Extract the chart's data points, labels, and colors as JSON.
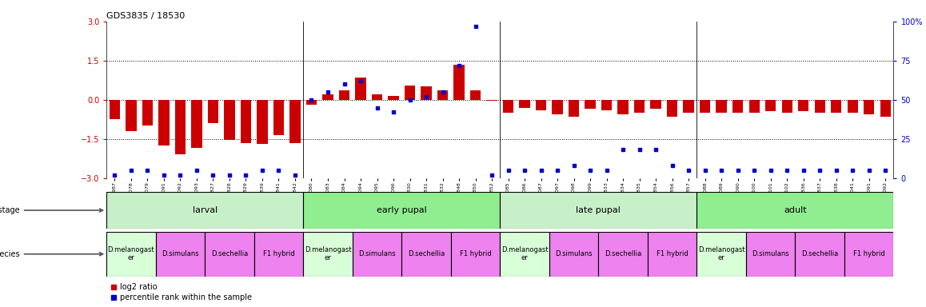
{
  "title": "GDS3835 / 18530",
  "sample_ids": [
    "GSM435987",
    "GSM436078",
    "GSM436079",
    "GSM436091",
    "GSM436092",
    "GSM436093",
    "GSM436827",
    "GSM436828",
    "GSM436829",
    "GSM436839",
    "GSM436841",
    "GSM436842",
    "GSM436080",
    "GSM436083",
    "GSM436084",
    "GSM436094",
    "GSM436095",
    "GSM436096",
    "GSM436830",
    "GSM436831",
    "GSM436832",
    "GSM436848",
    "GSM436850",
    "GSM436852",
    "GSM436085",
    "GSM436086",
    "GSM436087",
    "GSM436097",
    "GSM436098",
    "GSM436099",
    "GSM436833",
    "GSM436834",
    "GSM436835",
    "GSM436854",
    "GSM436856",
    "GSM436857",
    "GSM436088",
    "GSM436089",
    "GSM436090",
    "GSM436100",
    "GSM436101",
    "GSM436102",
    "GSM436836",
    "GSM436837",
    "GSM436838",
    "GSM437041",
    "GSM437091",
    "GSM437092"
  ],
  "log2_vals": [
    -0.75,
    -1.2,
    -1.0,
    -1.75,
    -2.1,
    -1.85,
    -0.9,
    -1.55,
    -1.65,
    -1.7,
    -1.35,
    -1.65,
    -0.2,
    0.2,
    0.35,
    0.85,
    0.2,
    0.15,
    0.55,
    0.5,
    0.35,
    1.35,
    0.35,
    -0.05,
    -0.5,
    -0.3,
    -0.4,
    -0.55,
    -0.65,
    -0.35,
    -0.4,
    -0.55,
    -0.5,
    -0.35,
    -0.65,
    -0.5,
    -0.5,
    -0.5,
    -0.5,
    -0.5,
    -0.45,
    -0.5,
    -0.45,
    -0.5,
    -0.5,
    -0.5,
    -0.55,
    -0.65
  ],
  "pct_vals": [
    2,
    5,
    5,
    2,
    2,
    5,
    2,
    2,
    2,
    5,
    5,
    2,
    50,
    55,
    60,
    62,
    45,
    42,
    50,
    52,
    55,
    72,
    97,
    2,
    5,
    5,
    5,
    5,
    8,
    5,
    5,
    18,
    18,
    18,
    8,
    5,
    5,
    5,
    5,
    5,
    5,
    5,
    5,
    5,
    5,
    5,
    5,
    5
  ],
  "dev_stage_groups": [
    {
      "label": "larval",
      "start": 0,
      "end": 12,
      "color": "#c8f0c8"
    },
    {
      "label": "early pupal",
      "start": 12,
      "end": 24,
      "color": "#90ee90"
    },
    {
      "label": "late pupal",
      "start": 24,
      "end": 36,
      "color": "#c8f0c8"
    },
    {
      "label": "adult",
      "start": 36,
      "end": 48,
      "color": "#90ee90"
    }
  ],
  "species_groups": [
    {
      "label": "D.melanogast\ner",
      "start": 0,
      "end": 3,
      "color": "#d8ffd8"
    },
    {
      "label": "D.simulans",
      "start": 3,
      "end": 6,
      "color": "#ee82ee"
    },
    {
      "label": "D.sechellia",
      "start": 6,
      "end": 9,
      "color": "#ee82ee"
    },
    {
      "label": "F1 hybrid",
      "start": 9,
      "end": 12,
      "color": "#ee82ee"
    },
    {
      "label": "D.melanogast\ner",
      "start": 12,
      "end": 15,
      "color": "#d8ffd8"
    },
    {
      "label": "D.simulans",
      "start": 15,
      "end": 18,
      "color": "#ee82ee"
    },
    {
      "label": "D.sechellia",
      "start": 18,
      "end": 21,
      "color": "#ee82ee"
    },
    {
      "label": "F1 hybrid",
      "start": 21,
      "end": 24,
      "color": "#ee82ee"
    },
    {
      "label": "D.melanogast\ner",
      "start": 24,
      "end": 27,
      "color": "#d8ffd8"
    },
    {
      "label": "D.simulans",
      "start": 27,
      "end": 30,
      "color": "#ee82ee"
    },
    {
      "label": "D.sechellia",
      "start": 30,
      "end": 33,
      "color": "#ee82ee"
    },
    {
      "label": "F1 hybrid",
      "start": 33,
      "end": 36,
      "color": "#ee82ee"
    },
    {
      "label": "D.melanogast\ner",
      "start": 36,
      "end": 39,
      "color": "#d8ffd8"
    },
    {
      "label": "D.simulans",
      "start": 39,
      "end": 42,
      "color": "#ee82ee"
    },
    {
      "label": "D.sechellia",
      "start": 42,
      "end": 45,
      "color": "#ee82ee"
    },
    {
      "label": "F1 hybrid",
      "start": 45,
      "end": 48,
      "color": "#ee82ee"
    }
  ],
  "bar_color": "#cc0000",
  "dot_color": "#0000cc",
  "bar_width": 0.65,
  "ylim_left": [
    -3,
    3
  ],
  "ylim_right": [
    0,
    100
  ],
  "yticks_left": [
    -3,
    -1.5,
    0,
    1.5,
    3
  ],
  "yticks_right": [
    0,
    25,
    50,
    75,
    100
  ],
  "hlines": [
    -1.5,
    0,
    1.5
  ],
  "tick_label_color": "#cc0000",
  "right_axis_color": "#0000cc",
  "n_samples": 48
}
